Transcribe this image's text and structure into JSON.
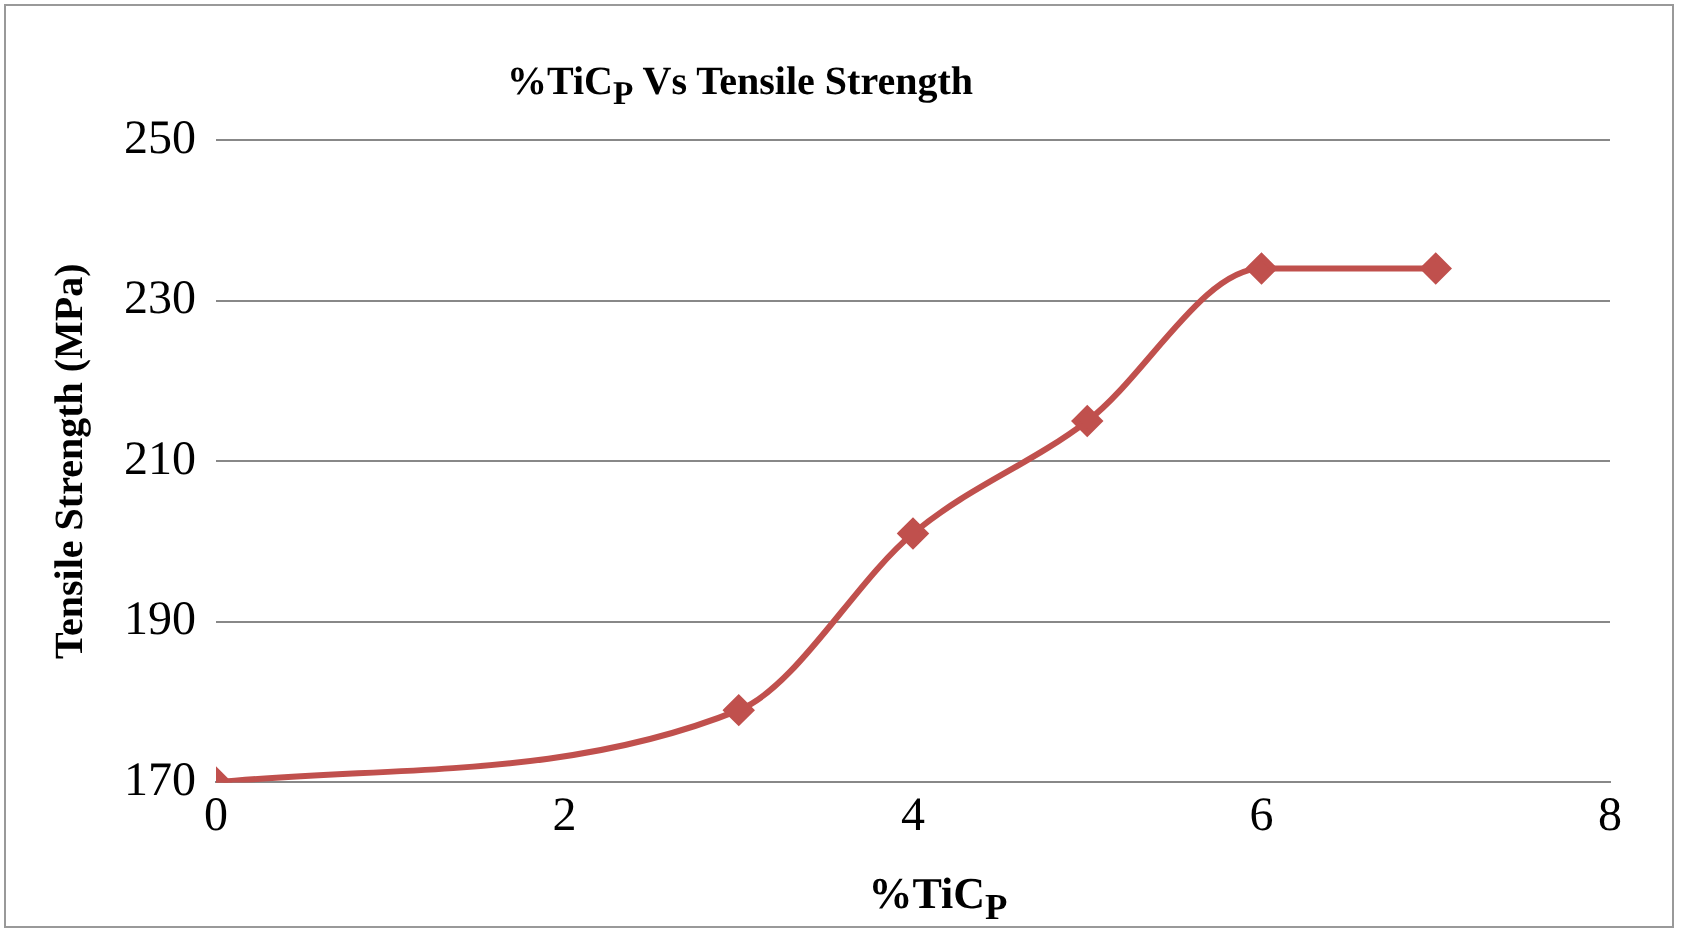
{
  "chart_data": {
    "type": "line",
    "title": "%TiC$_{P}$ Vs Tensile Strength",
    "xlabel": "%TiC$_{P}$",
    "ylabel": "Tensile Strength (MPa)",
    "x": [
      0,
      3,
      4,
      5,
      6,
      7
    ],
    "series": [
      {
        "color": "#c0504d",
        "values": [
          170,
          179,
          201,
          215,
          234,
          234
        ]
      }
    ],
    "xlim": [
      0,
      8
    ],
    "xticks": [
      0,
      2,
      4,
      6,
      8
    ],
    "ylim": [
      170,
      250
    ],
    "yticks": [
      170,
      190,
      210,
      230,
      250
    ],
    "grid": "y",
    "marker": "diamond",
    "line_style": "solid"
  }
}
